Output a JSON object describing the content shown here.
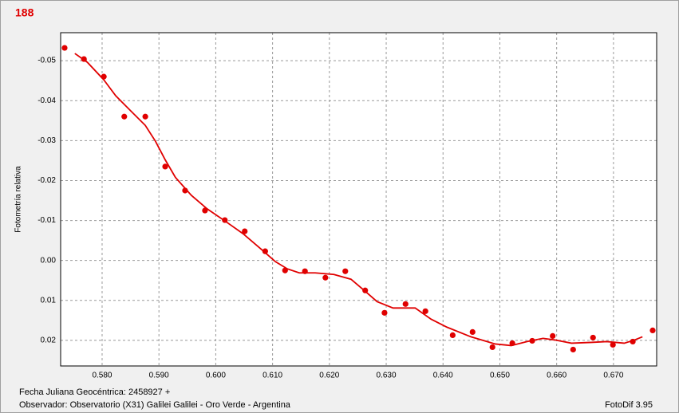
{
  "chart_data": {
    "type": "scatter",
    "title": "188",
    "y_label": "Fotometría relativa",
    "footer_left": [
      "Fecha Juliana Geocéntrica: 2458927 +",
      "Observador: Observatorio (X31) Galilei Galilei - Oro Verde - Argentina"
    ],
    "footer_right": "FotoDif 3.95",
    "xlim": [
      0.5727,
      0.6776
    ],
    "ylim": [
      -0.057,
      0.0264
    ],
    "y_inverted": true,
    "grid": true,
    "xticks": [
      {
        "value": 0.58,
        "label": "0.580"
      },
      {
        "value": 0.59,
        "label": "0.590"
      },
      {
        "value": 0.6,
        "label": "0.600"
      },
      {
        "value": 0.61,
        "label": "0.610"
      },
      {
        "value": 0.62,
        "label": "0.620"
      },
      {
        "value": 0.63,
        "label": "0.630"
      },
      {
        "value": 0.64,
        "label": "0.640"
      },
      {
        "value": 0.65,
        "label": "0.650"
      },
      {
        "value": 0.66,
        "label": "0.660"
      },
      {
        "value": 0.67,
        "label": "0.670"
      }
    ],
    "yticks": [
      -0.05,
      -0.04,
      -0.03,
      -0.02,
      -0.01,
      {
        "value": 0,
        "label": "0.00"
      },
      0.01,
      0.02
    ],
    "series": [
      {
        "style": "markers",
        "color": "#e00000",
        "x": [
          0.5734,
          0.5768,
          0.5803,
          0.5839,
          0.5876,
          0.5911,
          0.5946,
          0.5981,
          0.6016,
          0.6051,
          0.6087,
          0.6122,
          0.6157,
          0.6193,
          0.6228,
          0.6263,
          0.6297,
          0.6334,
          0.6369,
          0.6417,
          0.6452,
          0.6487,
          0.6522,
          0.6557,
          0.6593,
          0.6629,
          0.6664,
          0.6699,
          0.6734,
          0.6769
        ],
        "values": [
          -0.0532,
          -0.0504,
          -0.046,
          -0.036,
          -0.036,
          -0.0235,
          -0.0175,
          -0.0125,
          -0.0101,
          -0.0073,
          -0.0023,
          0.0025,
          0.0027,
          0.0043,
          0.0027,
          0.0075,
          0.0131,
          0.0109,
          0.0127,
          0.0187,
          0.0179,
          0.0217,
          0.0207,
          0.0201,
          0.0189,
          0.0223,
          0.0193,
          0.0211,
          0.0203,
          0.0175
        ]
      },
      {
        "style": "line",
        "color": "#e00000",
        "x": [
          0.5752,
          0.5774,
          0.5803,
          0.5824,
          0.5852,
          0.5876,
          0.5894,
          0.5911,
          0.5929,
          0.5957,
          0.5985,
          0.6016,
          0.6048,
          0.6081,
          0.6105,
          0.6126,
          0.6147,
          0.6175,
          0.6208,
          0.6238,
          0.6263,
          0.6284,
          0.6312,
          0.6351,
          0.6379,
          0.6407,
          0.6449,
          0.6492,
          0.652,
          0.6548,
          0.6576,
          0.6597,
          0.6626,
          0.6661,
          0.6688,
          0.6719,
          0.6737,
          0.6751
        ],
        "values": [
          -0.0518,
          -0.0496,
          -0.0452,
          -0.0412,
          -0.0372,
          -0.0338,
          -0.0298,
          -0.0252,
          -0.0208,
          -0.0163,
          -0.0129,
          -0.0099,
          -0.0067,
          -0.0027,
          0.0003,
          0.0021,
          0.0031,
          0.0031,
          0.0035,
          0.0047,
          0.0077,
          0.0103,
          0.0119,
          0.0119,
          0.0147,
          0.0167,
          0.0191,
          0.0209,
          0.0213,
          0.0203,
          0.0195,
          0.0199,
          0.0207,
          0.0205,
          0.0203,
          0.0207,
          0.0199,
          0.0191
        ]
      }
    ]
  }
}
